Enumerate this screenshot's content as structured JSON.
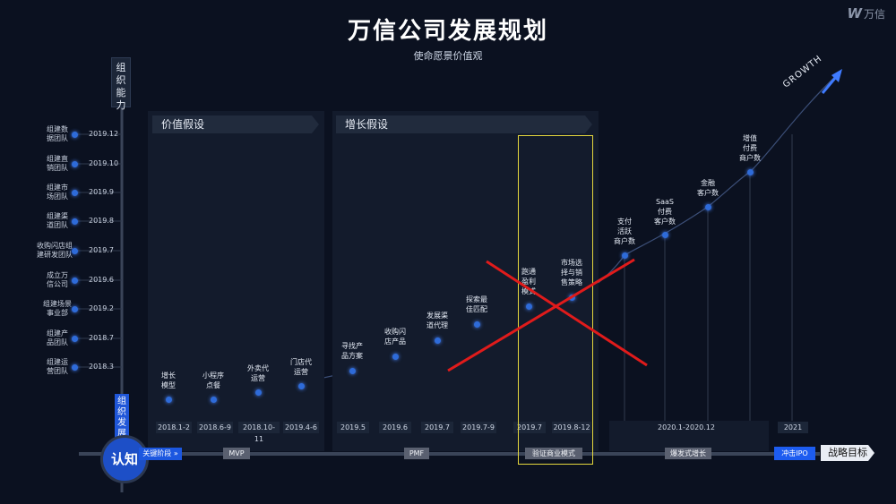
{
  "header": {
    "title": "万信公司发展规划",
    "subtitle": "使命愿景价值观",
    "logo_text": "万信"
  },
  "left_axis": {
    "top_label_lines": [
      "组",
      "织",
      "能",
      "力"
    ],
    "bottom_label_lines": [
      "组",
      "织",
      "发",
      "展"
    ],
    "items": [
      {
        "label_lines": [
          "组建数",
          "据团队"
        ],
        "date": "2019.12"
      },
      {
        "label_lines": [
          "组建直",
          "销团队"
        ],
        "date": "2019.10"
      },
      {
        "label_lines": [
          "组建市",
          "场团队"
        ],
        "date": "2019.9"
      },
      {
        "label_lines": [
          "组建渠",
          "道团队"
        ],
        "date": "2019.8"
      },
      {
        "label_lines": [
          "收购闪店组",
          "建研发团队"
        ],
        "date": "2019.7"
      },
      {
        "label_lines": [
          "成立万",
          "信公司"
        ],
        "date": "2019.6"
      },
      {
        "label_lines": [
          "组建场景",
          "事业部"
        ],
        "date": "2019.2"
      },
      {
        "label_lines": [
          "组建产",
          "品团队"
        ],
        "date": "2018.7"
      },
      {
        "label_lines": [
          "组建运",
          "营团队"
        ],
        "date": "2018.3"
      }
    ]
  },
  "panels": {
    "value_hypothesis": "价值假设",
    "growth_hypothesis": "增长假设"
  },
  "milestones": [
    {
      "label_lines": [
        "增长",
        "模型"
      ]
    },
    {
      "label_lines": [
        "小程序",
        "点餐"
      ]
    },
    {
      "label_lines": [
        "外卖代",
        "运营"
      ]
    },
    {
      "label_lines": [
        "门店代",
        "运营"
      ]
    },
    {
      "label_lines": [
        "寻找产",
        "品方案"
      ]
    },
    {
      "label_lines": [
        "收购闪",
        "店产品"
      ]
    },
    {
      "label_lines": [
        "发展渠",
        "道代理"
      ]
    },
    {
      "label_lines": [
        "探索最",
        "佳匹配"
      ]
    },
    {
      "label_lines": [
        "跑通",
        "盈利",
        "模式"
      ]
    },
    {
      "label_lines": [
        "市场选",
        "择与销",
        "售策略"
      ]
    },
    {
      "label_lines": [
        "支付",
        "活跃",
        "商户数"
      ]
    },
    {
      "label_lines": [
        "SaaS",
        "付费",
        "客户数"
      ]
    },
    {
      "label_lines": [
        "金融",
        "客户数"
      ]
    },
    {
      "label_lines": [
        "增值",
        "付费",
        "商户数"
      ]
    }
  ],
  "dates": [
    "2018.1-2",
    "2018.6-9",
    "2018.10-11",
    "2019.4-6",
    "2019.5",
    "2019.6",
    "2019.7",
    "2019.7-9",
    "2019.7",
    "2019.8-12",
    "2020.1-2020.12",
    "2021"
  ],
  "bottom_axis": {
    "center_label": "认知",
    "key_stage": "关键阶段 »",
    "stages": [
      "MVP",
      "PMF",
      "验证商业模式",
      "爆发式增长"
    ],
    "ipo": "冲击IPO",
    "strategic_goal": "战略目标"
  },
  "growth_label": "GROWTH",
  "colors": {
    "background": "#0b1120",
    "accent_blue": "#1d5cf0",
    "highlight_box": "#e4d63d",
    "cross": "#e02020"
  }
}
